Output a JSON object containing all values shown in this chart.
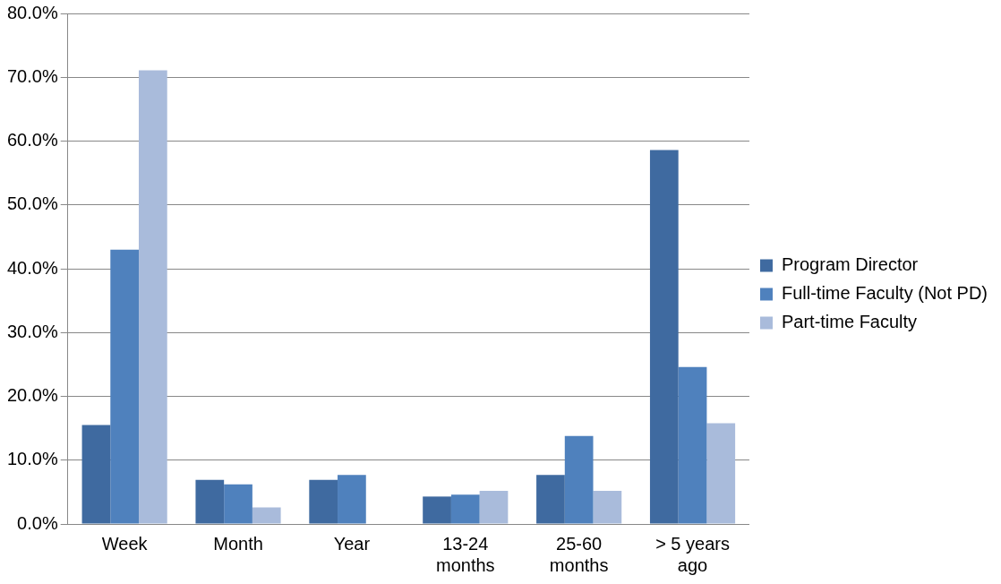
{
  "chart_data": {
    "type": "bar",
    "categories": [
      "Week",
      "Month",
      "Year",
      "13-24 months",
      "25-60 months",
      "> 5 years ago"
    ],
    "series": [
      {
        "name": "Program Director",
        "color": "#3f6aa0",
        "values": [
          15.5,
          6.9,
          6.9,
          4.3,
          7.7,
          58.6
        ]
      },
      {
        "name": "Full-time Faculty (Not PD)",
        "color": "#4f81bd",
        "values": [
          43.0,
          6.2,
          7.7,
          4.6,
          13.8,
          24.6
        ]
      },
      {
        "name": "Part-time Faculty",
        "color": "#a9bbdb",
        "values": [
          71.1,
          2.6,
          0,
          5.2,
          5.2,
          15.8
        ]
      }
    ],
    "ylim": [
      0,
      80
    ],
    "yticks": [
      {
        "value": 0,
        "label": "0.0%"
      },
      {
        "value": 10,
        "label": "10.0%"
      },
      {
        "value": 20,
        "label": "20.0%"
      },
      {
        "value": 30,
        "label": "30.0%"
      },
      {
        "value": 40,
        "label": "40.0%"
      },
      {
        "value": 50,
        "label": "50.0%"
      },
      {
        "value": 60,
        "label": "60.0%"
      },
      {
        "value": 70,
        "label": "70.0%"
      },
      {
        "value": 80,
        "label": "80.0%"
      }
    ],
    "grid": "y",
    "legend": "right"
  }
}
